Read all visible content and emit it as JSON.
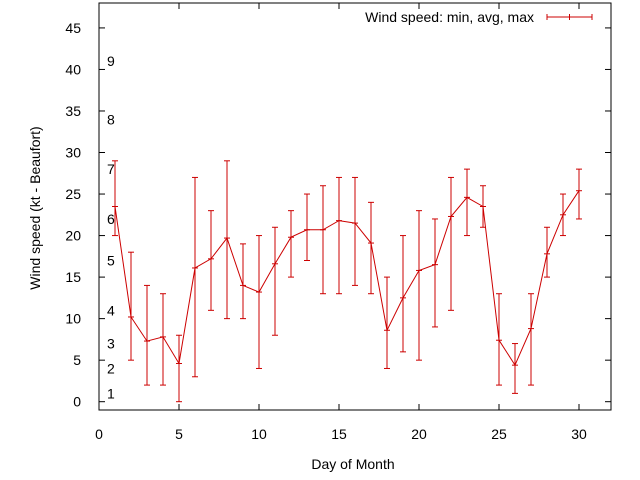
{
  "chart_data": {
    "type": "line",
    "xlabel": "Day of Month",
    "ylabel": "Wind speed (kt - Beaufort)",
    "xlim": [
      0,
      32
    ],
    "ylim": [
      -1,
      48
    ],
    "xticks": [
      0,
      5,
      10,
      15,
      20,
      25,
      30
    ],
    "yticks": [
      0,
      5,
      10,
      15,
      20,
      25,
      30,
      35,
      40,
      45
    ],
    "grid": false,
    "legend_position": "top-right",
    "series": [
      {
        "name": "Wind speed: min, avg, max",
        "color": "#cc0000",
        "x": [
          1,
          2,
          3,
          4,
          5,
          6,
          7,
          8,
          9,
          10,
          11,
          12,
          13,
          14,
          15,
          16,
          17,
          18,
          19,
          20,
          21,
          22,
          23,
          24,
          25,
          26,
          27,
          28,
          29,
          30
        ],
        "avg": [
          23.5,
          10.2,
          7.3,
          7.8,
          4.6,
          16.1,
          17.2,
          19.7,
          14.0,
          13.2,
          16.6,
          19.8,
          20.7,
          20.7,
          21.8,
          21.5,
          19.1,
          8.6,
          12.5,
          15.8,
          16.5,
          22.3,
          24.6,
          23.5,
          7.4,
          4.4,
          8.8,
          17.8,
          22.5,
          25.4
        ],
        "min": [
          20,
          5,
          2,
          2,
          0,
          3,
          11,
          10,
          10,
          4,
          8,
          15,
          17,
          13,
          13,
          14,
          13,
          4,
          6,
          5,
          9,
          11,
          20,
          21,
          2,
          1,
          2,
          15,
          20,
          22
        ],
        "max": [
          29,
          18,
          14,
          13,
          8,
          27,
          23,
          29,
          19,
          20,
          21,
          23,
          25,
          26,
          27,
          27,
          24,
          15,
          20,
          23,
          22,
          27,
          28,
          26,
          13,
          7,
          13,
          21,
          25,
          28
        ]
      }
    ],
    "annotations": [
      {
        "text": "1",
        "y": 1
      },
      {
        "text": "2",
        "y": 4
      },
      {
        "text": "3",
        "y": 7
      },
      {
        "text": "4",
        "y": 11
      },
      {
        "text": "5",
        "y": 17
      },
      {
        "text": "6",
        "y": 22
      },
      {
        "text": "7",
        "y": 28
      },
      {
        "text": "8",
        "y": 34
      },
      {
        "text": "9",
        "y": 41
      }
    ]
  }
}
